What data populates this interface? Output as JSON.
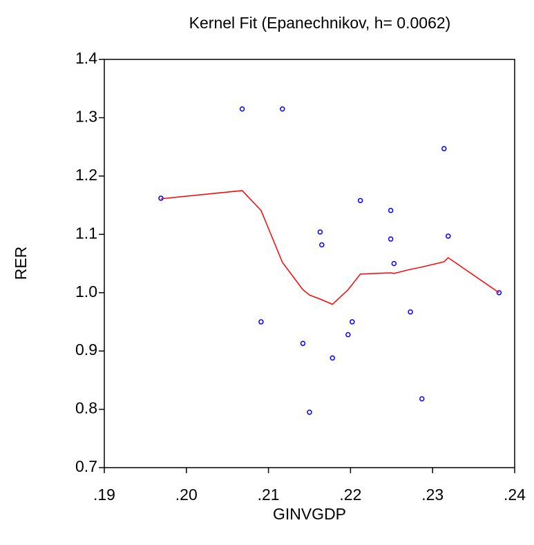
{
  "chart_data": {
    "type": "scatter",
    "title": "Kernel Fit (Epanechnikov, h= 0.0062)",
    "x_label": "GINVGDP",
    "y_label": "RER",
    "xlim": [
      0.19,
      0.24
    ],
    "ylim": [
      0.7,
      1.4
    ],
    "xticks": [
      {
        "value": 0.19,
        "label": ".19"
      },
      {
        "value": 0.2,
        "label": ".20"
      },
      {
        "value": 0.21,
        "label": ".21"
      },
      {
        "value": 0.22,
        "label": ".22"
      },
      {
        "value": 0.23,
        "label": ".23"
      },
      {
        "value": 0.24,
        "label": ".24"
      }
    ],
    "yticks": [
      0.7,
      0.8,
      0.9,
      {
        "value": 1,
        "label": "1.0"
      },
      1.1,
      1.2,
      1.3,
      1.4
    ],
    "grid": false,
    "series": [
      {
        "mode": "markers",
        "color": "#0000ff",
        "x": [
          0.1969,
          0.2068,
          0.2117,
          0.2314,
          0.2212,
          0.2249,
          0.2163,
          0.2249,
          0.2319,
          0.2165,
          0.2253,
          0.2381,
          0.2091,
          0.2202,
          0.2273,
          0.2142,
          0.2197,
          0.2178,
          0.215,
          0.2287
        ],
        "values": [
          1.162,
          1.315,
          1.315,
          1.247,
          1.158,
          1.141,
          1.104,
          1.092,
          1.097,
          1.082,
          1.05,
          1.0,
          0.95,
          0.95,
          0.967,
          0.913,
          0.928,
          0.888,
          0.795,
          0.818
        ]
      },
      {
        "mode": "line",
        "color": "#ff0000",
        "x": [
          0.1969,
          0.2068,
          0.2091,
          0.2117,
          0.2142,
          0.215,
          0.2163,
          0.2178,
          0.2197,
          0.2212,
          0.2249,
          0.2253,
          0.2273,
          0.2287,
          0.2314,
          0.2319,
          0.2381
        ],
        "values": [
          1.161,
          1.175,
          1.141,
          1.052,
          1.005,
          0.996,
          0.989,
          0.98,
          1.005,
          1.032,
          1.034,
          1.033,
          1.04,
          1.044,
          1.053,
          1.06,
          1.0
        ]
      }
    ]
  }
}
